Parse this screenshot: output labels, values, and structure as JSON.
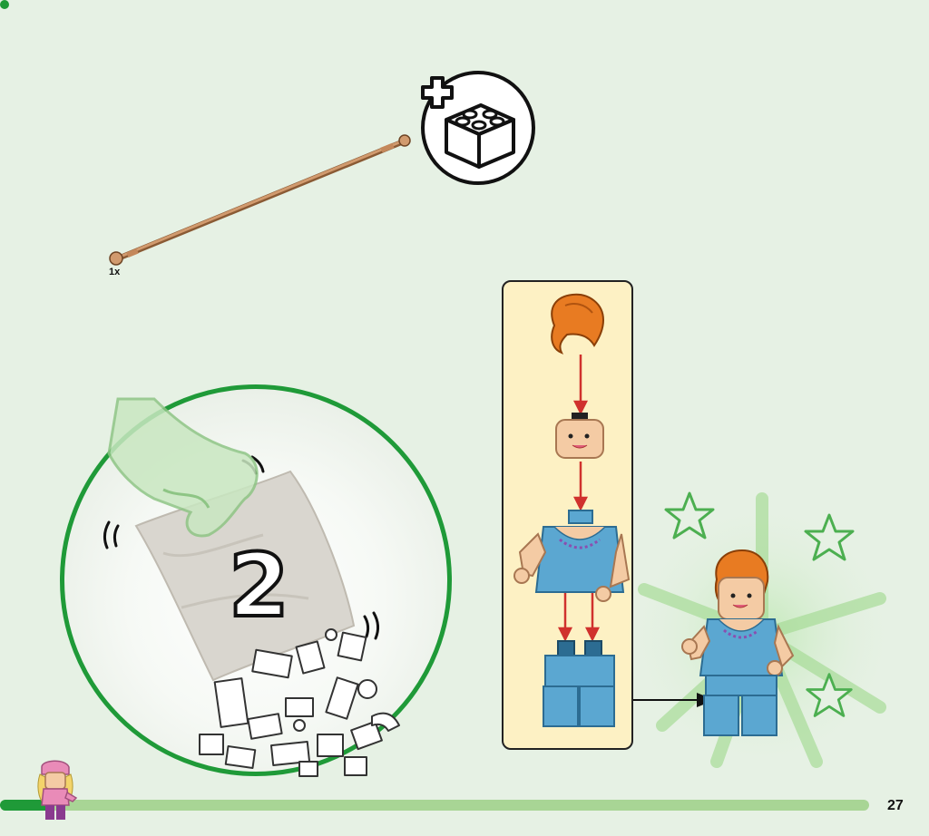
{
  "steps": {
    "parts_callout": {
      "quantity_label": "1x"
    },
    "bag_step": {
      "number": "2"
    }
  },
  "page": {
    "number": "27",
    "progress": 0.06
  },
  "icons": {
    "extra_bricks": "add-brick-icon",
    "hand": "hand-icon",
    "bag": "polybag-icon",
    "arrow": "arrow-right-icon",
    "stars": "star-icon",
    "mascot": "minifigure-icon"
  },
  "colors": {
    "accent_green": "#1f9a38",
    "progress_light": "#a8d595",
    "panel_background": "#fdf1c4",
    "arrow_red": "#d0312d",
    "hair_orange": "#e87b22",
    "torso_blue": "#5ba7d1",
    "skin": "#f4cba4"
  }
}
